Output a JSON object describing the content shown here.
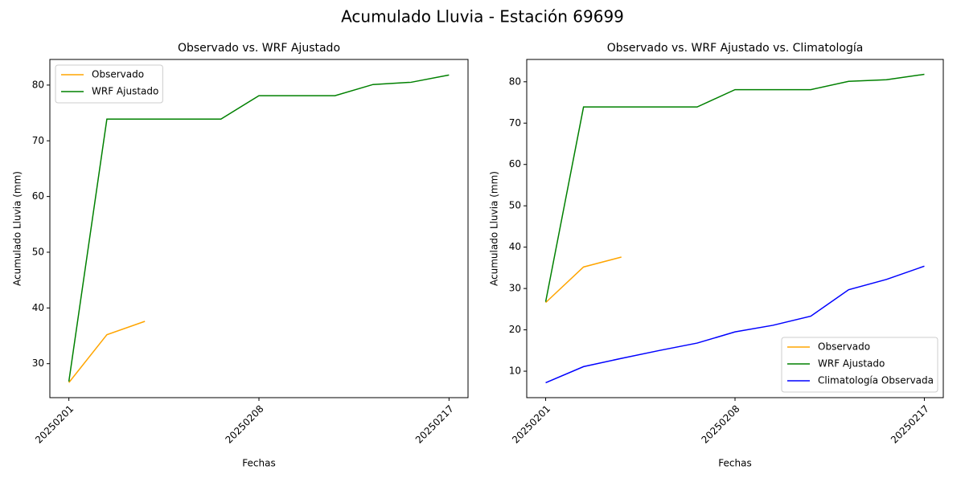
{
  "title": "Acumulado Lluvia - Estación 69699",
  "chart_data": [
    {
      "type": "line",
      "title": "Observado vs. WRF Ajustado",
      "x_label": "Fechas",
      "y_label": "Acumulado Lluvia (mm)",
      "categories": [
        "20250201",
        null,
        null,
        null,
        null,
        "20250208",
        null,
        null,
        null,
        null,
        "20250217"
      ],
      "series": [
        {
          "name": "Observado",
          "color": "orange",
          "values": [
            26.6,
            35.2,
            37.6,
            null,
            null,
            null,
            null,
            null,
            null,
            null,
            null
          ]
        },
        {
          "name": "WRF Ajustado",
          "color": "green",
          "values": [
            26.8,
            73.9,
            73.9,
            73.9,
            73.9,
            78.1,
            78.1,
            78.1,
            80.1,
            80.5,
            81.8
          ]
        }
      ],
      "ylim": [
        23.9,
        84.6
      ],
      "yticks": [
        30,
        40,
        50,
        60,
        70,
        80
      ],
      "legend": "upper left"
    },
    {
      "type": "line",
      "title": "Observado vs. WRF Ajustado vs. Climatología",
      "x_label": "Fechas",
      "y_label": "Acumulado Lluvia (mm)",
      "categories": [
        "20250201",
        null,
        null,
        null,
        null,
        "20250208",
        null,
        null,
        null,
        null,
        "20250217"
      ],
      "series": [
        {
          "name": "Observado",
          "color": "orange",
          "values": [
            26.6,
            35.2,
            37.6,
            null,
            null,
            null,
            null,
            null,
            null,
            null,
            null
          ]
        },
        {
          "name": "WRF Ajustado",
          "color": "green",
          "values": [
            26.8,
            73.9,
            73.9,
            73.9,
            73.9,
            78.1,
            78.1,
            78.1,
            80.1,
            80.5,
            81.8
          ]
        },
        {
          "name": "Climatología Observada",
          "color": "blue",
          "values": [
            7.2,
            11.1,
            13.1,
            15.0,
            16.8,
            19.5,
            21.1,
            23.3,
            29.7,
            32.2,
            35.4
          ]
        }
      ],
      "ylim": [
        3.6,
        85.4
      ],
      "yticks": [
        10,
        20,
        30,
        40,
        50,
        60,
        70,
        80
      ],
      "legend": "lower right"
    }
  ]
}
